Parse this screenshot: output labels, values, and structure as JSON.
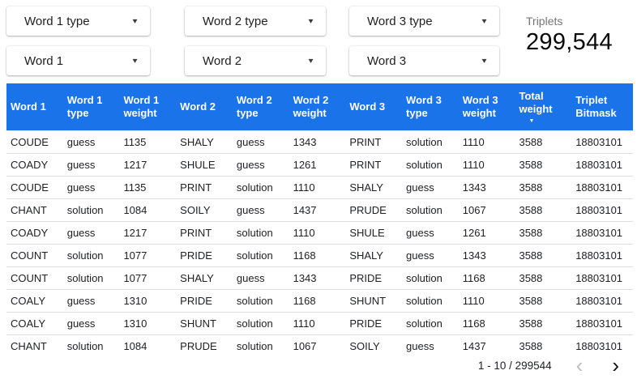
{
  "colors": {
    "table_header_bg": "#1a73e8",
    "table_header_text": "#ffffff",
    "row_divider": "#e0e0e0",
    "body_text": "#202124",
    "scorecard_label_text": "#757575",
    "disabled_chevron": "#bdbdbd"
  },
  "icons": {
    "dropdown_caret": "▾",
    "sort_desc": "▼",
    "prev_chevron": "‹",
    "next_chevron": "›"
  },
  "filter_columns": [
    {
      "type_label": "Word 1 type",
      "word_label": "Word 1"
    },
    {
      "type_label": "Word 2 type",
      "word_label": "Word 2"
    },
    {
      "type_label": "Word 3 type",
      "word_label": "Word 3"
    }
  ],
  "scorecard": {
    "label": "Triplets",
    "value": "299,544"
  },
  "table": {
    "columns": [
      "Word 1",
      "Word 1 type",
      "Word 1 weight",
      "Word 2",
      "Word 2 type",
      "Word 2 weight",
      "Word 3",
      "Word 3 type",
      "Word 3 weight",
      "Total weight",
      "Triplet Bitmask"
    ],
    "sorted_column": "Total weight",
    "sorted_column_index": 9,
    "sort_direction": "desc",
    "rows": [
      [
        "COUDE",
        "guess",
        "1135",
        "SHALY",
        "guess",
        "1343",
        "PRINT",
        "solution",
        "1110",
        "3588",
        "18803101"
      ],
      [
        "COADY",
        "guess",
        "1217",
        "SHULE",
        "guess",
        "1261",
        "PRINT",
        "solution",
        "1110",
        "3588",
        "18803101"
      ],
      [
        "COUDE",
        "guess",
        "1135",
        "PRINT",
        "solution",
        "1110",
        "SHALY",
        "guess",
        "1343",
        "3588",
        "18803101"
      ],
      [
        "CHANT",
        "solution",
        "1084",
        "SOILY",
        "guess",
        "1437",
        "PRUDE",
        "solution",
        "1067",
        "3588",
        "18803101"
      ],
      [
        "COADY",
        "guess",
        "1217",
        "PRINT",
        "solution",
        "1110",
        "SHULE",
        "guess",
        "1261",
        "3588",
        "18803101"
      ],
      [
        "COUNT",
        "solution",
        "1077",
        "PRIDE",
        "solution",
        "1168",
        "SHALY",
        "guess",
        "1343",
        "3588",
        "18803101"
      ],
      [
        "COUNT",
        "solution",
        "1077",
        "SHALY",
        "guess",
        "1343",
        "PRIDE",
        "solution",
        "1168",
        "3588",
        "18803101"
      ],
      [
        "COALY",
        "guess",
        "1310",
        "PRIDE",
        "solution",
        "1168",
        "SHUNT",
        "solution",
        "1110",
        "3588",
        "18803101"
      ],
      [
        "COALY",
        "guess",
        "1310",
        "SHUNT",
        "solution",
        "1110",
        "PRIDE",
        "solution",
        "1168",
        "3588",
        "18803101"
      ],
      [
        "CHANT",
        "solution",
        "1084",
        "PRUDE",
        "solution",
        "1067",
        "SOILY",
        "guess",
        "1437",
        "3588",
        "18803101"
      ]
    ]
  },
  "pagination": {
    "range_label": "1 - 10 / 299544"
  }
}
